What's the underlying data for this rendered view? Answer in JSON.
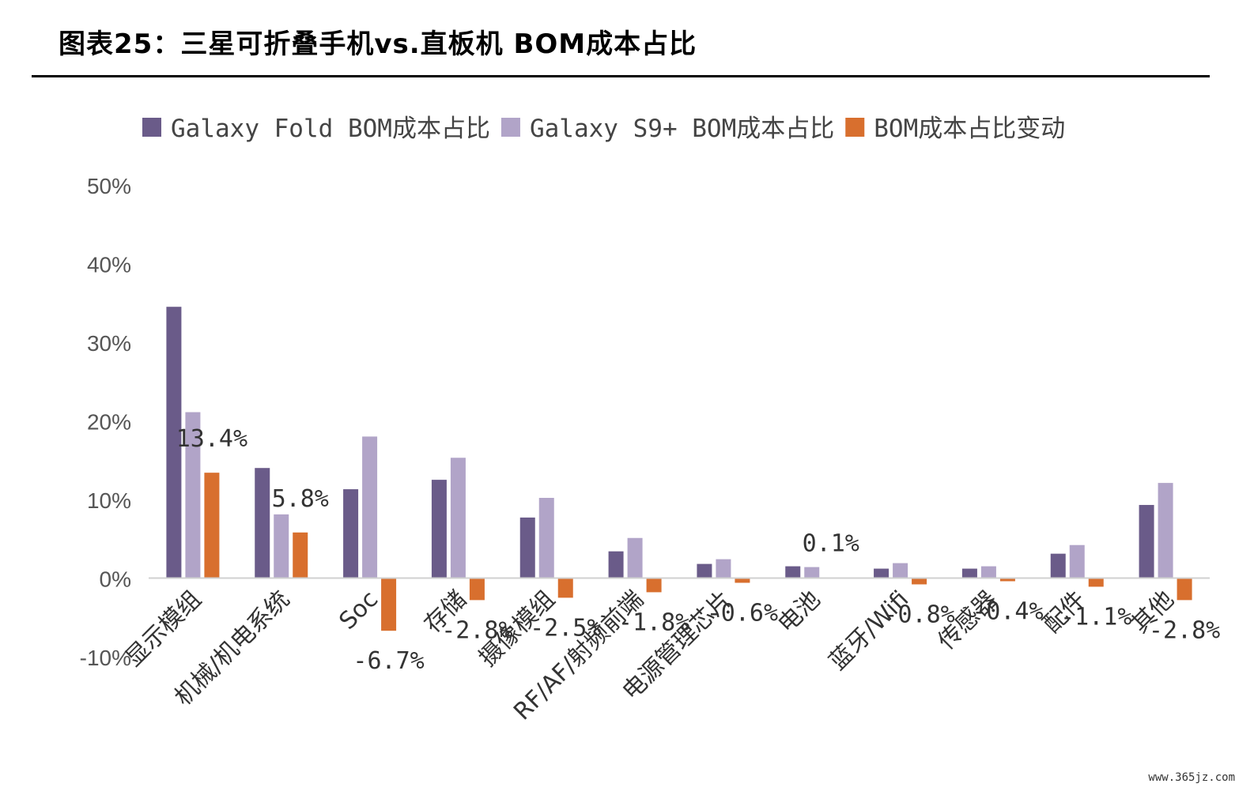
{
  "title": "图表25：三星可折叠手机vs.直板机 BOM成本占比",
  "watermark": "www.365jz.com",
  "chart_data": {
    "type": "bar",
    "title": "",
    "xlabel": "",
    "ylabel": "",
    "ylim": [
      -10,
      50
    ],
    "yticks": [
      50,
      40,
      30,
      20,
      10,
      0,
      -10
    ],
    "ytick_labels": [
      "50%",
      "40%",
      "30%",
      "20%",
      "10%",
      "0%",
      "-10%"
    ],
    "grid": false,
    "legend_position": "top",
    "categories": [
      "显示模组",
      "机械/机电系统",
      "Soc",
      "存储",
      "摄像模组",
      "RF/AF/射频前端",
      "电源管理芯片",
      "电池",
      "蓝牙/Wifi",
      "传感器",
      "配件",
      "其他"
    ],
    "series": [
      {
        "name": "Galaxy Fold BOM成本占比",
        "color": "#6a5b89",
        "values": [
          34.5,
          14.0,
          11.3,
          12.5,
          7.7,
          3.4,
          1.8,
          1.5,
          1.2,
          1.2,
          3.1,
          9.3
        ]
      },
      {
        "name": "Galaxy S9+ BOM成本占比",
        "color": "#b1a4c8",
        "values": [
          21.1,
          8.1,
          18.0,
          15.3,
          10.2,
          5.1,
          2.4,
          1.4,
          1.9,
          1.5,
          4.2,
          12.1
        ]
      },
      {
        "name": "BOM成本占比变动",
        "color": "#d86f2e",
        "values": [
          13.4,
          5.8,
          -6.7,
          -2.8,
          -2.5,
          -1.8,
          -0.6,
          0.1,
          -0.8,
          -0.4,
          -1.1,
          -2.8
        ]
      }
    ],
    "data_labels": [
      "13.4%",
      "5.8%",
      "-6.7%",
      "-2.8%",
      "-2.5%",
      "-1.8%",
      "-0.6%",
      "0.1%",
      "-0.8%",
      "-0.4%",
      "-1.1%",
      "-2.8%"
    ]
  }
}
